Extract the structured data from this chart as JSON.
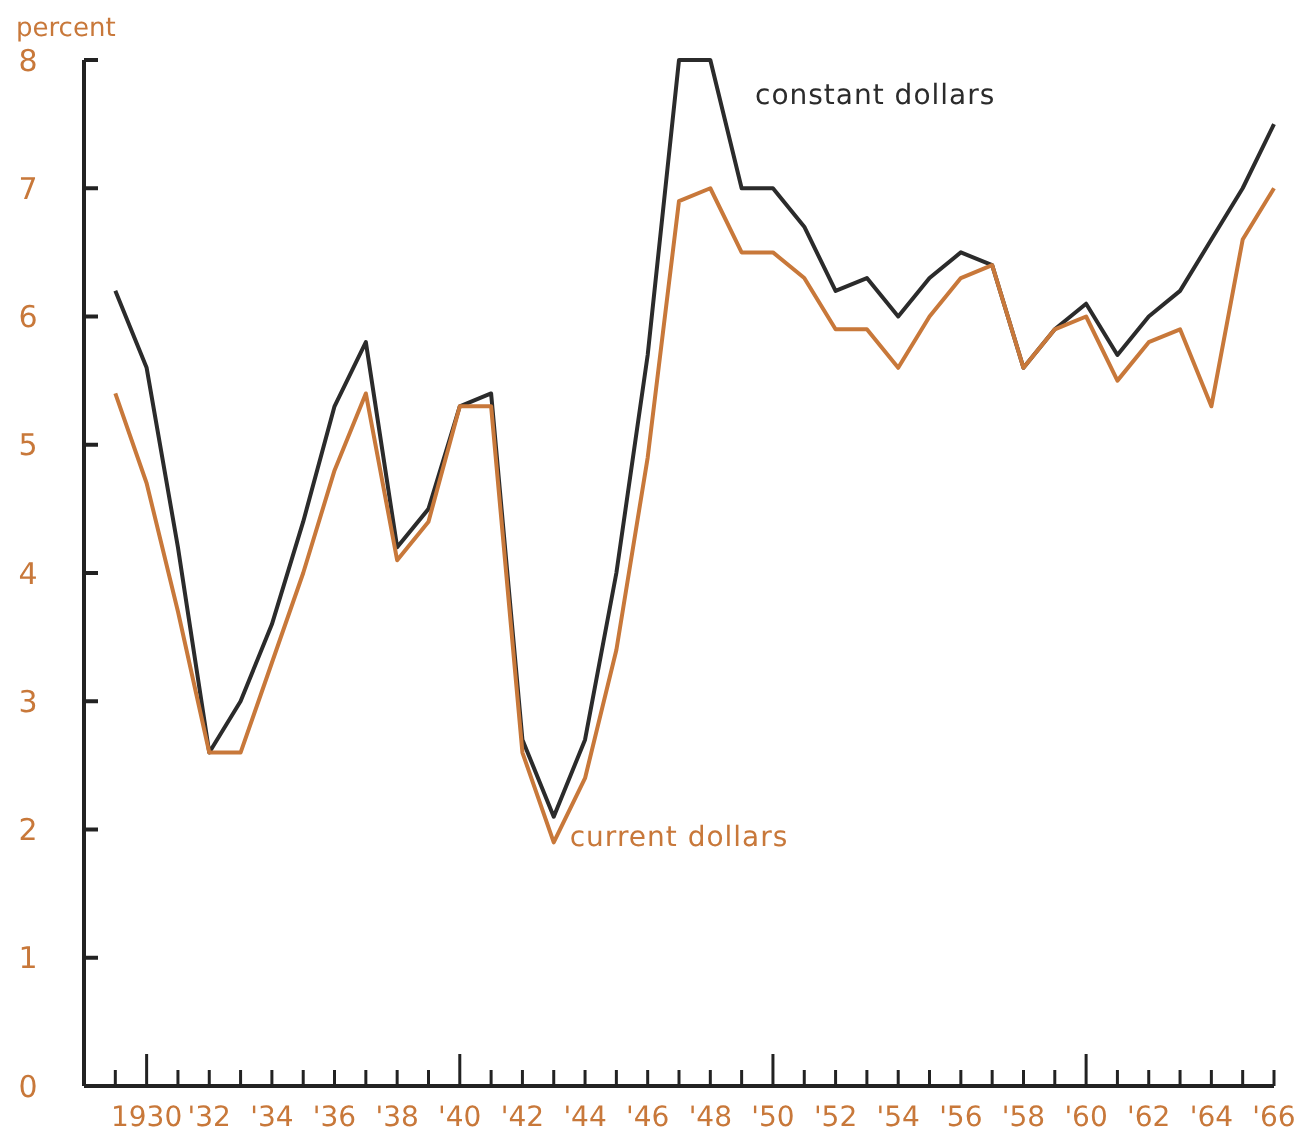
{
  "chart_data": {
    "type": "line",
    "ylabel": "percent",
    "x": [
      1929,
      1930,
      1931,
      1932,
      1933,
      1934,
      1935,
      1936,
      1937,
      1938,
      1939,
      1940,
      1941,
      1942,
      1943,
      1944,
      1945,
      1946,
      1947,
      1948,
      1949,
      1950,
      1951,
      1952,
      1953,
      1954,
      1955,
      1956,
      1957,
      1958,
      1959,
      1960,
      1961,
      1962,
      1963,
      1964,
      1965,
      1966
    ],
    "series": [
      {
        "name": "constant dollars",
        "color": "#2b2b2b",
        "values": [
          6.2,
          5.6,
          4.2,
          2.6,
          3.0,
          3.6,
          4.4,
          5.3,
          5.8,
          4.2,
          4.5,
          5.3,
          5.4,
          2.7,
          2.1,
          2.7,
          4.0,
          5.7,
          8.0,
          8.0,
          7.0,
          7.0,
          6.7,
          6.2,
          6.3,
          6.0,
          6.3,
          6.5,
          6.4,
          5.6,
          5.9,
          6.1,
          5.7,
          6.0,
          6.2,
          6.6,
          7.0,
          7.5
        ]
      },
      {
        "name": "current dollars",
        "color": "#c8783a",
        "values": [
          5.4,
          4.7,
          3.7,
          2.6,
          2.6,
          3.3,
          4.0,
          4.8,
          5.4,
          4.1,
          4.4,
          5.3,
          5.3,
          2.6,
          1.9,
          2.4,
          3.4,
          4.9,
          6.9,
          7.0,
          6.5,
          6.5,
          6.3,
          5.9,
          5.9,
          5.6,
          6.0,
          6.3,
          6.4,
          5.6,
          5.9,
          6.0,
          5.5,
          5.8,
          5.9,
          5.3,
          6.6,
          7.0
        ]
      }
    ],
    "xlim": [
      1928,
      1966
    ],
    "xticks": [
      {
        "value": 1929,
        "label": null
      },
      {
        "value": 1930,
        "label": "1930"
      },
      {
        "value": 1931,
        "label": null
      },
      {
        "value": 1932,
        "label": "'32"
      },
      {
        "value": 1933,
        "label": null
      },
      {
        "value": 1934,
        "label": "'34"
      },
      {
        "value": 1935,
        "label": null
      },
      {
        "value": 1936,
        "label": "'36"
      },
      {
        "value": 1937,
        "label": null
      },
      {
        "value": 1938,
        "label": "'38"
      },
      {
        "value": 1939,
        "label": null
      },
      {
        "value": 1940,
        "label": "'40"
      },
      {
        "value": 1941,
        "label": null
      },
      {
        "value": 1942,
        "label": "'42"
      },
      {
        "value": 1943,
        "label": null
      },
      {
        "value": 1944,
        "label": "'44"
      },
      {
        "value": 1945,
        "label": null
      },
      {
        "value": 1946,
        "label": "'46"
      },
      {
        "value": 1947,
        "label": null
      },
      {
        "value": 1948,
        "label": "'48"
      },
      {
        "value": 1949,
        "label": null
      },
      {
        "value": 1950,
        "label": "'50"
      },
      {
        "value": 1951,
        "label": null
      },
      {
        "value": 1952,
        "label": "'52"
      },
      {
        "value": 1953,
        "label": null
      },
      {
        "value": 1954,
        "label": "'54"
      },
      {
        "value": 1955,
        "label": null
      },
      {
        "value": 1956,
        "label": "'56"
      },
      {
        "value": 1957,
        "label": null
      },
      {
        "value": 1958,
        "label": "'58"
      },
      {
        "value": 1959,
        "label": null
      },
      {
        "value": 1960,
        "label": "'60"
      },
      {
        "value": 1961,
        "label": null
      },
      {
        "value": 1962,
        "label": "'62"
      },
      {
        "value": 1963,
        "label": null
      },
      {
        "value": 1964,
        "label": "'64"
      },
      {
        "value": 1965,
        "label": null
      },
      {
        "value": 1966,
        "label": "'66"
      }
    ],
    "ylim": [
      0,
      8
    ],
    "yticks": [
      0,
      1,
      2,
      3,
      4,
      5,
      6,
      7,
      8
    ],
    "grid": false,
    "marker": "none",
    "line_style": "solid"
  }
}
